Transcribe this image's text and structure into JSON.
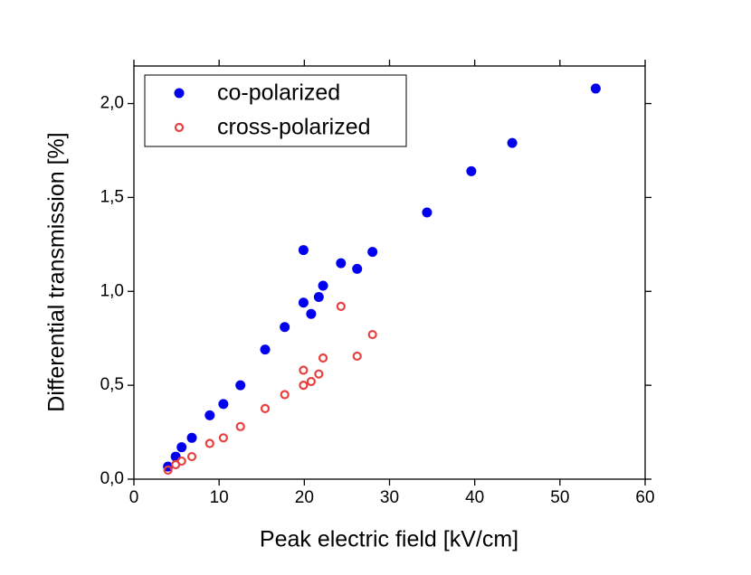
{
  "chart_data": {
    "type": "scatter",
    "x_label": "Peak electric field [kV/cm]",
    "y_label": "Differential transmission [%]",
    "xlim": [
      0,
      60
    ],
    "xticks": [
      0,
      10,
      20,
      30,
      40,
      50,
      60
    ],
    "ylim": [
      0,
      2.2
    ],
    "yticks": [
      {
        "value": 0,
        "label": "0,0"
      },
      {
        "value": 0.5,
        "label": "0,5"
      },
      {
        "value": 1,
        "label": "1,0"
      },
      {
        "value": 1.5,
        "label": "1,5"
      },
      {
        "value": 2,
        "label": "2,0"
      }
    ],
    "legend": "upper left",
    "series": [
      {
        "name": "co-polarized",
        "color": "#0000ee",
        "marker": "filled",
        "x": [
          4.0,
          4.9,
          5.6,
          6.8,
          8.9,
          10.5,
          12.5,
          15.4,
          17.7,
          19.9,
          19.9,
          20.8,
          21.7,
          22.2,
          24.3,
          26.2,
          28.0,
          34.4,
          39.6,
          44.4,
          54.2
        ],
        "values": [
          0.067,
          0.12,
          0.17,
          0.22,
          0.34,
          0.4,
          0.5,
          0.69,
          0.81,
          1.22,
          0.94,
          0.88,
          0.97,
          1.03,
          1.15,
          1.12,
          1.21,
          1.42,
          1.64,
          1.79,
          2.08
        ]
      },
      {
        "name": "cross-polarized",
        "color": "#e84040",
        "marker": "open",
        "x": [
          4.0,
          4.9,
          5.6,
          6.8,
          8.9,
          10.5,
          12.5,
          15.4,
          17.7,
          19.9,
          19.9,
          20.8,
          21.7,
          22.2,
          24.3,
          26.2,
          28.0
        ],
        "values": [
          0.048,
          0.077,
          0.096,
          0.12,
          0.19,
          0.22,
          0.28,
          0.376,
          0.45,
          0.58,
          0.5,
          0.52,
          0.56,
          0.645,
          0.92,
          0.655,
          0.77
        ]
      }
    ]
  }
}
